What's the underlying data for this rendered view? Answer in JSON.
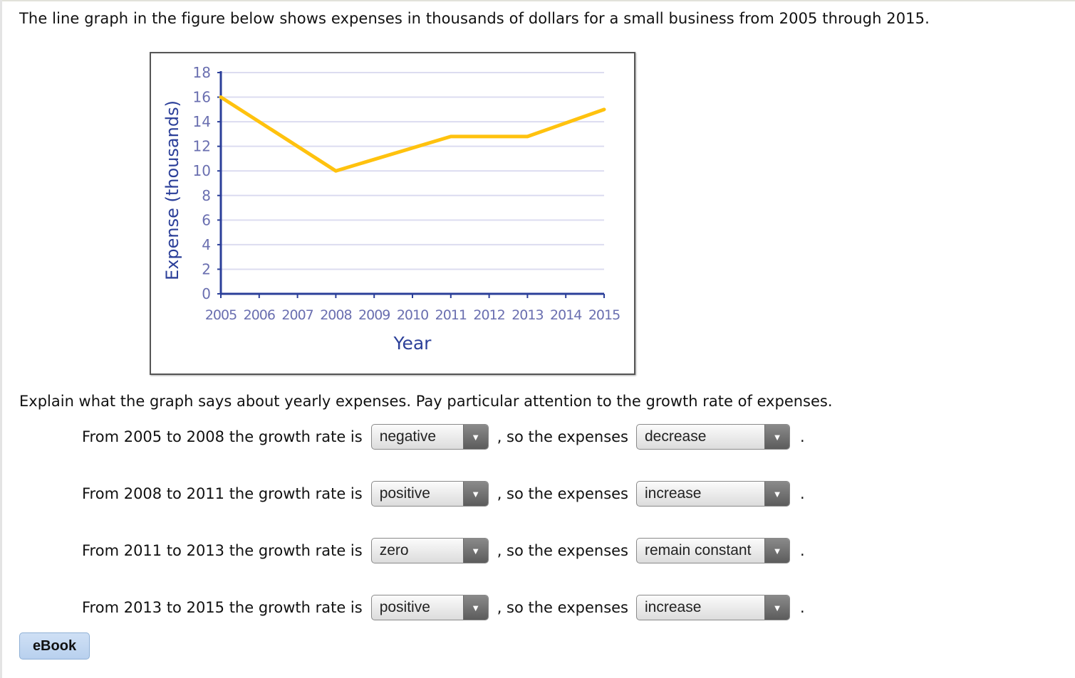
{
  "intro_text": "The line graph in the figure below shows expenses in thousands of dollars for a small business from 2005 through 2015.",
  "question_text": "Explain what the graph says about yearly expenses. Pay particular attention to the growth rate of expenses.",
  "rows": [
    {
      "lead": "From 2005 to 2008 the growth rate is",
      "rate": "negative",
      "mid": ", so the expenses",
      "expenses": "decrease",
      "end": "."
    },
    {
      "lead": "From 2008 to 2011 the growth rate is",
      "rate": "positive",
      "mid": ", so the expenses",
      "expenses": "increase",
      "end": "."
    },
    {
      "lead": "From 2011 to 2013 the growth rate is",
      "rate": "zero",
      "mid": ", so the expenses",
      "expenses": "remain constant",
      "end": "."
    },
    {
      "lead": "From 2013 to 2015 the growth rate is",
      "rate": "positive",
      "mid": ", so the expenses",
      "expenses": "increase",
      "end": "."
    }
  ],
  "dropdown_arrow": "▼",
  "ebook_label": "eBook",
  "colors": {
    "line": "#ffc20e",
    "axis": "#2b3f99",
    "grid": "#dcdcf0",
    "tick_label": "#6a6fb0",
    "ebook_bg": "#c4d8f2"
  },
  "chart_data": {
    "type": "line",
    "title": "",
    "xlabel": "Year",
    "ylabel": "Expense (thousands)",
    "x": [
      2005,
      2006,
      2007,
      2008,
      2009,
      2010,
      2011,
      2012,
      2013,
      2014,
      2015
    ],
    "x_tick_labels": [
      "2005",
      "2006",
      "2007",
      "2008",
      "2009",
      "2010",
      "2011",
      "2012",
      "2013",
      "2014",
      "2015"
    ],
    "y_ticks": [
      0,
      2,
      4,
      6,
      8,
      10,
      12,
      14,
      16,
      18
    ],
    "ylim": [
      0,
      18
    ],
    "grid": true,
    "legend": null,
    "series": [
      {
        "name": "Expense",
        "values": [
          16,
          14,
          12,
          10,
          11,
          11.9,
          12.8,
          12.8,
          12.8,
          13.9,
          15
        ]
      }
    ],
    "key_points": [
      {
        "x": 2005,
        "y": 16
      },
      {
        "x": 2008,
        "y": 10
      },
      {
        "x": 2011,
        "y": 12.8
      },
      {
        "x": 2013,
        "y": 12.8
      },
      {
        "x": 2015,
        "y": 15
      }
    ]
  }
}
